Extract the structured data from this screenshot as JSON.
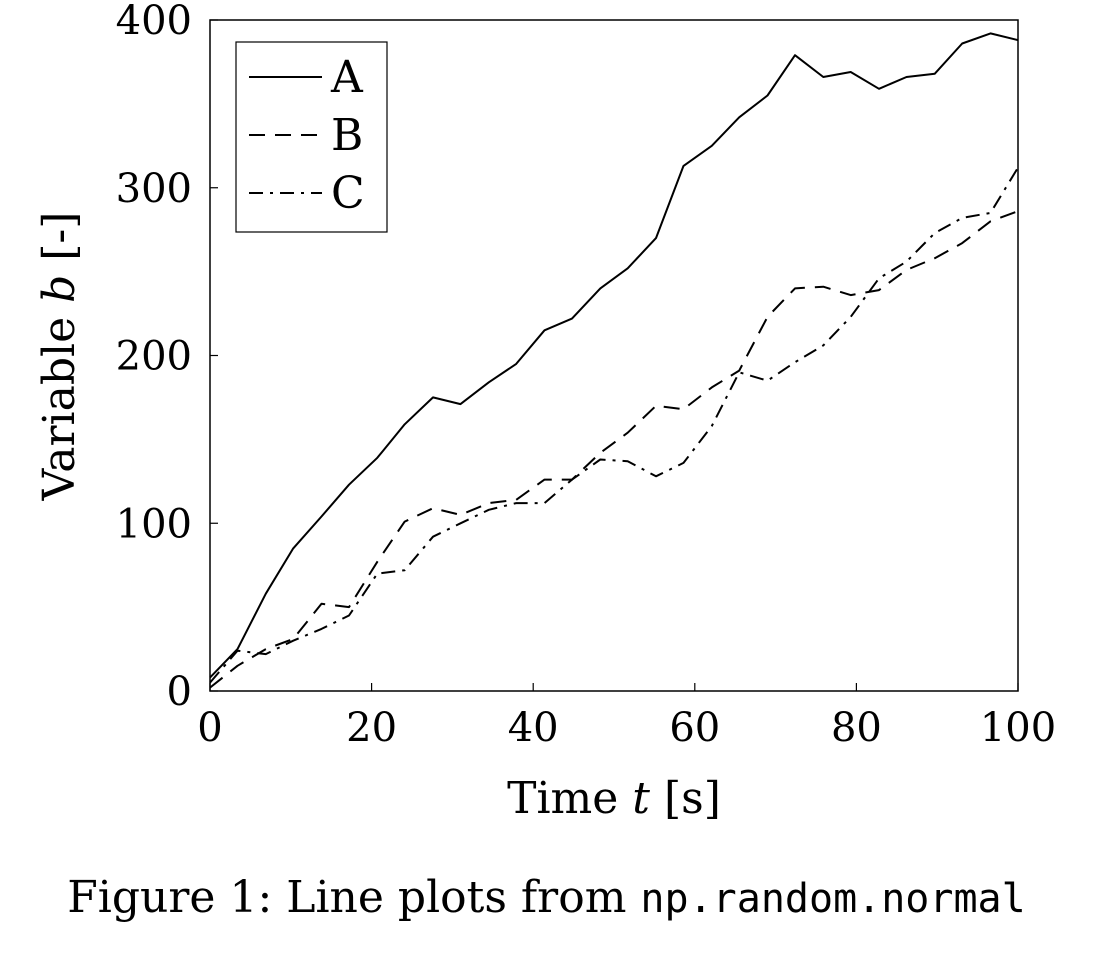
{
  "chart_data": {
    "type": "line",
    "xlabel_text": "Time ",
    "xlabel_var": "t",
    "xlabel_unit": " [s]",
    "ylabel_text": "Variable ",
    "ylabel_var": "b",
    "ylabel_unit": " [-]",
    "xlim": [
      0,
      100
    ],
    "ylim": [
      0,
      400
    ],
    "x_ticks": [
      0,
      20,
      40,
      60,
      80,
      100
    ],
    "x_tick_labels": [
      "0",
      "20",
      "40",
      "60",
      "80",
      "100"
    ],
    "y_ticks": [
      0,
      100,
      200,
      300,
      400
    ],
    "y_tick_labels": [
      "0",
      "100",
      "200",
      "300",
      "400"
    ],
    "legend_position": "top-left",
    "grid": false,
    "x": [
      0,
      3.4,
      6.9,
      10.3,
      13.8,
      17.2,
      20.7,
      24.1,
      27.6,
      31.0,
      34.5,
      37.9,
      41.4,
      44.8,
      48.3,
      51.7,
      55.2,
      58.6,
      62.1,
      65.5,
      69.0,
      72.4,
      75.9,
      79.3,
      82.8,
      86.2,
      89.7,
      93.1,
      96.6,
      100
    ],
    "series": [
      {
        "name": "A",
        "dash": "solid",
        "values": [
          8,
          25,
          58,
          85,
          104,
          123,
          139,
          159,
          175,
          171,
          184,
          195,
          215,
          222,
          240,
          252,
          270,
          313,
          325,
          342,
          355,
          379,
          366,
          369,
          359,
          366,
          368,
          386,
          392,
          388
        ]
      },
      {
        "name": "B",
        "dash": "dashed",
        "values": [
          2,
          15,
          25,
          31,
          52,
          50,
          77,
          101,
          109,
          105,
          112,
          114,
          126,
          126,
          142,
          154,
          170,
          168,
          181,
          191,
          223,
          240,
          241,
          236,
          239,
          251,
          258,
          267,
          280,
          286
        ]
      },
      {
        "name": "C",
        "dash": "dashdot",
        "values": [
          5,
          24,
          22,
          30,
          37,
          45,
          70,
          72,
          92,
          100,
          108,
          112,
          112,
          126,
          138,
          137,
          128,
          136,
          158,
          190,
          185,
          196,
          206,
          223,
          246,
          256,
          273,
          282,
          285,
          312
        ]
      }
    ]
  },
  "caption": {
    "prefix": "Figure 1: Line plots from ",
    "code": "np.random.normal"
  }
}
